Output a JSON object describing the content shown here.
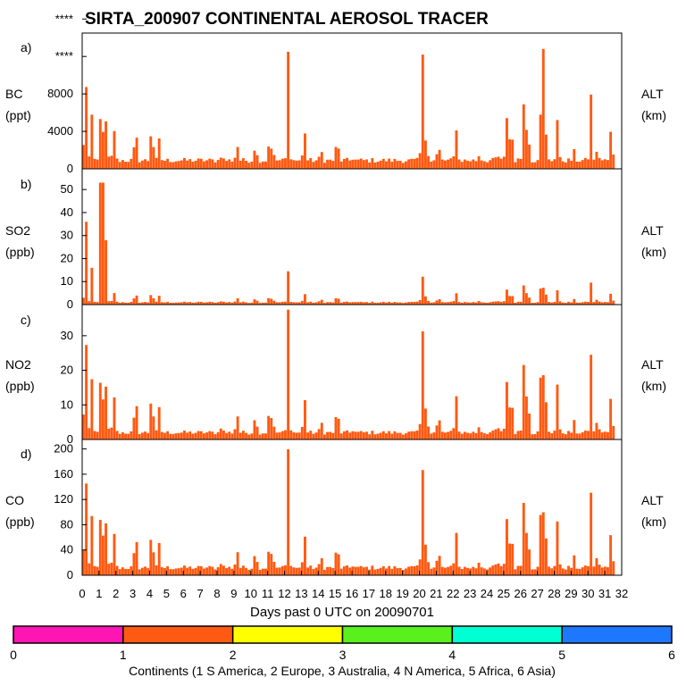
{
  "chart_data": {
    "type": "bar",
    "title": "SIRTA_200907 CONTINENTAL AEROSOL TRACER",
    "xlabel": "Days past 0 UTC on 20090701",
    "xlim": [
      0,
      32
    ],
    "x_ticks": [
      "0",
      "1",
      "2",
      "3",
      "4",
      "5",
      "6",
      "7",
      "8",
      "9",
      "10",
      "11",
      "12",
      "13",
      "14",
      "15",
      "16",
      "17",
      "18",
      "19",
      "20",
      "21",
      "22",
      "23",
      "24",
      "25",
      "26",
      "27",
      "28",
      "29",
      "30",
      "31",
      "32"
    ],
    "bar_color": "#ff5a12",
    "peaks": [
      {
        "day": 0.12,
        "height": 0.95
      },
      {
        "day": 0.48,
        "height": 0.55
      },
      {
        "day": 1.08,
        "height": 1.0
      },
      {
        "day": 1.35,
        "height": 0.5
      },
      {
        "day": 1.8,
        "height": 0.4
      },
      {
        "day": 3.1,
        "height": 0.5
      },
      {
        "day": 4.05,
        "height": 0.55
      },
      {
        "day": 4.5,
        "height": 0.22
      },
      {
        "day": 8.2,
        "height": 0.08
      },
      {
        "day": 9.1,
        "height": 0.2
      },
      {
        "day": 10.2,
        "height": 0.26
      },
      {
        "day": 11.05,
        "height": 0.4
      },
      {
        "day": 11.2,
        "height": 0.25
      },
      {
        "day": 12.15,
        "height": 1.0
      },
      {
        "day": 13.1,
        "height": 0.33
      },
      {
        "day": 14.1,
        "height": 0.12
      },
      {
        "day": 15.05,
        "height": 0.38
      },
      {
        "day": 16.0,
        "height": 0.04
      },
      {
        "day": 20.1,
        "height": 1.0
      },
      {
        "day": 20.35,
        "height": 0.3
      },
      {
        "day": 21.05,
        "height": 0.22
      },
      {
        "day": 22.1,
        "height": 0.45
      },
      {
        "day": 23.5,
        "height": 0.08
      },
      {
        "day": 24.55,
        "height": 0.1
      },
      {
        "day": 25.1,
        "height": 0.45
      },
      {
        "day": 25.35,
        "height": 0.65
      },
      {
        "day": 26.1,
        "height": 0.6
      },
      {
        "day": 26.35,
        "height": 0.75
      },
      {
        "day": 27.1,
        "height": 0.65
      },
      {
        "day": 27.35,
        "height": 1.0
      },
      {
        "day": 28.1,
        "height": 0.55
      },
      {
        "day": 29.1,
        "height": 0.1
      },
      {
        "day": 30.1,
        "height": 0.7
      },
      {
        "day": 30.5,
        "height": 0.15
      },
      {
        "day": 31.3,
        "height": 0.45
      }
    ],
    "panels": [
      {
        "letter": "a)",
        "species": "BC",
        "unit": "(ppt)",
        "right_label": "ALT",
        "right_unit": "(km)",
        "ylim": [
          0,
          14500
        ],
        "y_ticks": [
          0,
          4000,
          8000
        ],
        "y_tick_labels": [
          "0",
          "4000",
          "8000"
        ],
        "overflow_tick_labels": [
          "****",
          "****"
        ],
        "overflow_ticks": [
          12000,
          16000
        ],
        "panel_scale": 11500,
        "baseline": 900,
        "series_values": {
          "12.15": 12500,
          "20.1": 12200,
          "27.35": 12800
        }
      },
      {
        "letter": "b)",
        "species": "SO2",
        "unit": "(ppb)",
        "right_label": "ALT",
        "right_unit": "(km)",
        "ylim": [
          0,
          59
        ],
        "y_ticks": [
          0,
          10,
          20,
          30,
          40,
          50
        ],
        "y_tick_labels": [
          "0",
          "10",
          "20",
          "30",
          "40",
          "50"
        ],
        "panel_scale": 14,
        "baseline": 1.0,
        "series_values": {
          "0.12": 36,
          "0.48": 16,
          "1.08": 53,
          "1.35": 28,
          "1.8": 5
        }
      },
      {
        "letter": "c)",
        "species": "NO2",
        "unit": "(ppb)",
        "right_label": "ALT",
        "right_unit": "(km)",
        "ylim": [
          0,
          39
        ],
        "y_ticks": [
          0,
          10,
          20,
          30
        ],
        "y_tick_labels": [
          "0",
          "10",
          "20",
          "30"
        ],
        "panel_scale": 37,
        "baseline": 2.0,
        "series_values": {}
      },
      {
        "letter": "d)",
        "species": "CO",
        "unit": "(ppb)",
        "right_label": "ALT",
        "right_unit": "(km)",
        "ylim": [
          0,
          215
        ],
        "y_ticks": [
          0,
          40,
          80,
          120,
          160,
          200
        ],
        "y_tick_labels": [
          "0",
          "40",
          "80",
          "120",
          "160",
          "200"
        ],
        "panel_scale": 195,
        "baseline": 12,
        "series_values": {}
      }
    ],
    "colorbar": {
      "label": "Continents (1 S America, 2 Europe, 3 Australia, 4 N America, 5 Africa, 6 Asia)",
      "tick_labels": [
        "0",
        "1",
        "2",
        "3",
        "4",
        "5",
        "6"
      ],
      "colors": [
        "#ff14b4",
        "#ff5a12",
        "#ffff00",
        "#5af01e",
        "#00ffd2",
        "#1e78ff"
      ]
    }
  }
}
